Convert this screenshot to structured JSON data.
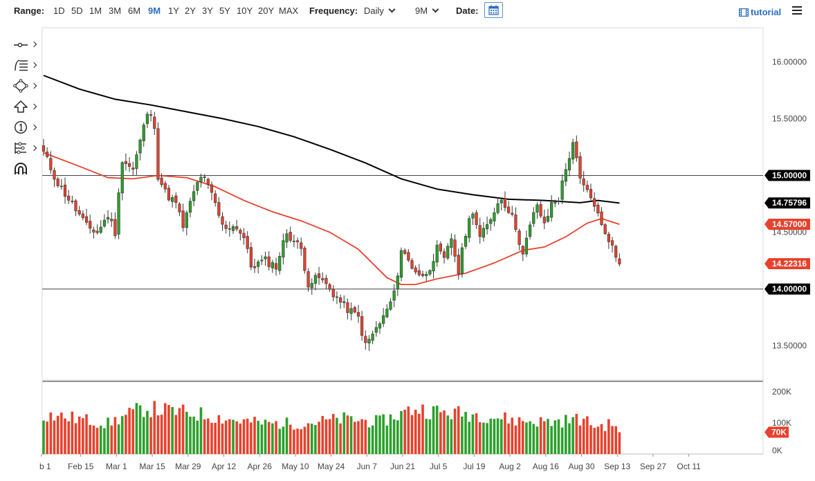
{
  "toolbar": {
    "range_label": "Range:",
    "ranges": [
      "1D",
      "5D",
      "1M",
      "3M",
      "6M",
      "9M",
      "1Y",
      "2Y",
      "3Y",
      "5Y",
      "10Y",
      "20Y",
      "MAX"
    ],
    "active_range": "9M",
    "frequency_label": "Frequency:",
    "frequency_value": "Daily",
    "period_value": "9M",
    "date_label": "Date:",
    "tutorial_label": "tutorial"
  },
  "colors": {
    "up": "#2ca02c",
    "down": "#e8412c",
    "sma_long": "#000000",
    "sma_short": "#e8412c",
    "accent": "#2b6cc4",
    "label_dark": "#000000",
    "label_red": "#e8412c"
  },
  "chart_data": {
    "type": "candlestick",
    "title": "",
    "x_tick_labels": [
      "b 1",
      "Feb 15",
      "Mar 1",
      "Mar 15",
      "Mar 29",
      "Apr 12",
      "Apr 26",
      "May 10",
      "May 24",
      "Jun 7",
      "Jun 21",
      "Jul 5",
      "Jul 19",
      "Aug 2",
      "Aug 16",
      "Aug 30",
      "Sep 13",
      "Sep 27",
      "Oct 11"
    ],
    "price_ticks": [
      "16.00000",
      "15.50000",
      "14.50000",
      "13.50000"
    ],
    "volume_ticks": [
      "200K",
      "100K",
      "0K"
    ],
    "price_range": [
      13.2,
      16.3
    ],
    "volume_range": [
      0,
      220000
    ],
    "horizontal_levels": [
      15.0,
      14.0
    ],
    "price_labels": [
      {
        "text": "15.00000",
        "value": 15.0,
        "color": "dark"
      },
      {
        "text": "14.75796",
        "value": 14.75796,
        "color": "dark"
      },
      {
        "text": "14.57000",
        "value": 14.57,
        "color": "red"
      },
      {
        "text": "14.22316",
        "value": 14.22316,
        "color": "red"
      },
      {
        "text": "14.00000",
        "value": 14.0,
        "color": "dark"
      }
    ],
    "volume_label": {
      "text": "70K",
      "value": 70000
    },
    "series": [
      {
        "name": "Price",
        "kind": "candlestick"
      },
      {
        "name": "Moving average (long)",
        "kind": "line",
        "color": "sma_long"
      },
      {
        "name": "Moving average (short)",
        "kind": "line",
        "color": "sma_short"
      },
      {
        "name": "Volume",
        "kind": "bar"
      }
    ],
    "anchors": [
      {
        "i": 0,
        "p": 15.2
      },
      {
        "i": 4,
        "p": 14.93
      },
      {
        "i": 8,
        "p": 14.75
      },
      {
        "i": 12,
        "p": 14.55
      },
      {
        "i": 15,
        "p": 14.5
      },
      {
        "i": 18,
        "p": 14.65
      },
      {
        "i": 20,
        "p": 14.5
      },
      {
        "i": 22,
        "p": 15.15
      },
      {
        "i": 25,
        "p": 15.05
      },
      {
        "i": 27,
        "p": 15.3
      },
      {
        "i": 29,
        "p": 15.55
      },
      {
        "i": 31,
        "p": 15.45
      },
      {
        "i": 32,
        "p": 15.0
      },
      {
        "i": 34,
        "p": 14.85
      },
      {
        "i": 37,
        "p": 14.75
      },
      {
        "i": 39,
        "p": 14.55
      },
      {
        "i": 42,
        "p": 14.85
      },
      {
        "i": 44,
        "p": 15.0
      },
      {
        "i": 46,
        "p": 14.9
      },
      {
        "i": 48,
        "p": 14.75
      },
      {
        "i": 50,
        "p": 14.55
      },
      {
        "i": 54,
        "p": 14.55
      },
      {
        "i": 56,
        "p": 14.45
      },
      {
        "i": 58,
        "p": 14.2
      },
      {
        "i": 62,
        "p": 14.25
      },
      {
        "i": 65,
        "p": 14.2
      },
      {
        "i": 68,
        "p": 14.5
      },
      {
        "i": 72,
        "p": 14.35
      },
      {
        "i": 74,
        "p": 14.05
      },
      {
        "i": 77,
        "p": 14.1
      },
      {
        "i": 80,
        "p": 14.0
      },
      {
        "i": 84,
        "p": 13.85
      },
      {
        "i": 88,
        "p": 13.75
      },
      {
        "i": 90,
        "p": 13.5
      },
      {
        "i": 92,
        "p": 13.6
      },
      {
        "i": 95,
        "p": 13.75
      },
      {
        "i": 98,
        "p": 13.95
      },
      {
        "i": 100,
        "p": 14.35
      },
      {
        "i": 103,
        "p": 14.2
      },
      {
        "i": 106,
        "p": 14.1
      },
      {
        "i": 108,
        "p": 14.2
      },
      {
        "i": 110,
        "p": 14.35
      },
      {
        "i": 112,
        "p": 14.25
      },
      {
        "i": 114,
        "p": 14.45
      },
      {
        "i": 116,
        "p": 14.15
      },
      {
        "i": 118,
        "p": 14.5
      },
      {
        "i": 120,
        "p": 14.7
      },
      {
        "i": 122,
        "p": 14.45
      },
      {
        "i": 124,
        "p": 14.55
      },
      {
        "i": 126,
        "p": 14.7
      },
      {
        "i": 128,
        "p": 14.8
      },
      {
        "i": 130,
        "p": 14.7
      },
      {
        "i": 132,
        "p": 14.55
      },
      {
        "i": 134,
        "p": 14.3
      },
      {
        "i": 136,
        "p": 14.55
      },
      {
        "i": 138,
        "p": 14.75
      },
      {
        "i": 140,
        "p": 14.55
      },
      {
        "i": 142,
        "p": 14.75
      },
      {
        "i": 144,
        "p": 14.8
      },
      {
        "i": 146,
        "p": 15.05
      },
      {
        "i": 148,
        "p": 15.3
      },
      {
        "i": 150,
        "p": 14.95
      },
      {
        "i": 152,
        "p": 14.85
      },
      {
        "i": 154,
        "p": 14.75
      },
      {
        "i": 156,
        "p": 14.55
      },
      {
        "i": 158,
        "p": 14.45
      },
      {
        "i": 160,
        "p": 14.28
      },
      {
        "i": 161,
        "p": 14.22
      }
    ],
    "long_ma": [
      {
        "i": 0,
        "p": 15.88
      },
      {
        "i": 10,
        "p": 15.76
      },
      {
        "i": 20,
        "p": 15.67
      },
      {
        "i": 30,
        "p": 15.62
      },
      {
        "i": 40,
        "p": 15.56
      },
      {
        "i": 50,
        "p": 15.5
      },
      {
        "i": 60,
        "p": 15.43
      },
      {
        "i": 70,
        "p": 15.34
      },
      {
        "i": 80,
        "p": 15.23
      },
      {
        "i": 90,
        "p": 15.11
      },
      {
        "i": 100,
        "p": 14.97
      },
      {
        "i": 110,
        "p": 14.88
      },
      {
        "i": 120,
        "p": 14.83
      },
      {
        "i": 130,
        "p": 14.79
      },
      {
        "i": 140,
        "p": 14.78
      },
      {
        "i": 150,
        "p": 14.76
      },
      {
        "i": 155,
        "p": 14.78
      },
      {
        "i": 161,
        "p": 14.757
      }
    ],
    "short_ma": [
      {
        "i": 0,
        "p": 15.2
      },
      {
        "i": 10,
        "p": 15.08
      },
      {
        "i": 18,
        "p": 14.98
      },
      {
        "i": 25,
        "p": 14.97
      },
      {
        "i": 32,
        "p": 15.0
      },
      {
        "i": 40,
        "p": 14.98
      },
      {
        "i": 48,
        "p": 14.9
      },
      {
        "i": 56,
        "p": 14.78
      },
      {
        "i": 64,
        "p": 14.68
      },
      {
        "i": 72,
        "p": 14.6
      },
      {
        "i": 80,
        "p": 14.5
      },
      {
        "i": 88,
        "p": 14.35
      },
      {
        "i": 96,
        "p": 14.1
      },
      {
        "i": 100,
        "p": 14.04
      },
      {
        "i": 104,
        "p": 14.04
      },
      {
        "i": 110,
        "p": 14.09
      },
      {
        "i": 118,
        "p": 14.14
      },
      {
        "i": 126,
        "p": 14.23
      },
      {
        "i": 134,
        "p": 14.34
      },
      {
        "i": 140,
        "p": 14.37
      },
      {
        "i": 146,
        "p": 14.46
      },
      {
        "i": 152,
        "p": 14.58
      },
      {
        "i": 156,
        "p": 14.62
      },
      {
        "i": 161,
        "p": 14.57
      }
    ],
    "volume_profile": [
      {
        "i": 0,
        "v": 130000
      },
      {
        "i": 10,
        "v": 115000
      },
      {
        "i": 18,
        "v": 100000
      },
      {
        "i": 28,
        "v": 150000
      },
      {
        "i": 36,
        "v": 140000
      },
      {
        "i": 44,
        "v": 130000
      },
      {
        "i": 54,
        "v": 110000
      },
      {
        "i": 62,
        "v": 100000
      },
      {
        "i": 72,
        "v": 100000
      },
      {
        "i": 84,
        "v": 115000
      },
      {
        "i": 94,
        "v": 105000
      },
      {
        "i": 104,
        "v": 150000
      },
      {
        "i": 112,
        "v": 135000
      },
      {
        "i": 122,
        "v": 130000
      },
      {
        "i": 132,
        "v": 110000
      },
      {
        "i": 142,
        "v": 105000
      },
      {
        "i": 150,
        "v": 115000
      },
      {
        "i": 155,
        "v": 90000
      },
      {
        "i": 160,
        "v": 100000
      },
      {
        "i": 161,
        "v": 70000
      }
    ],
    "count": 162
  }
}
